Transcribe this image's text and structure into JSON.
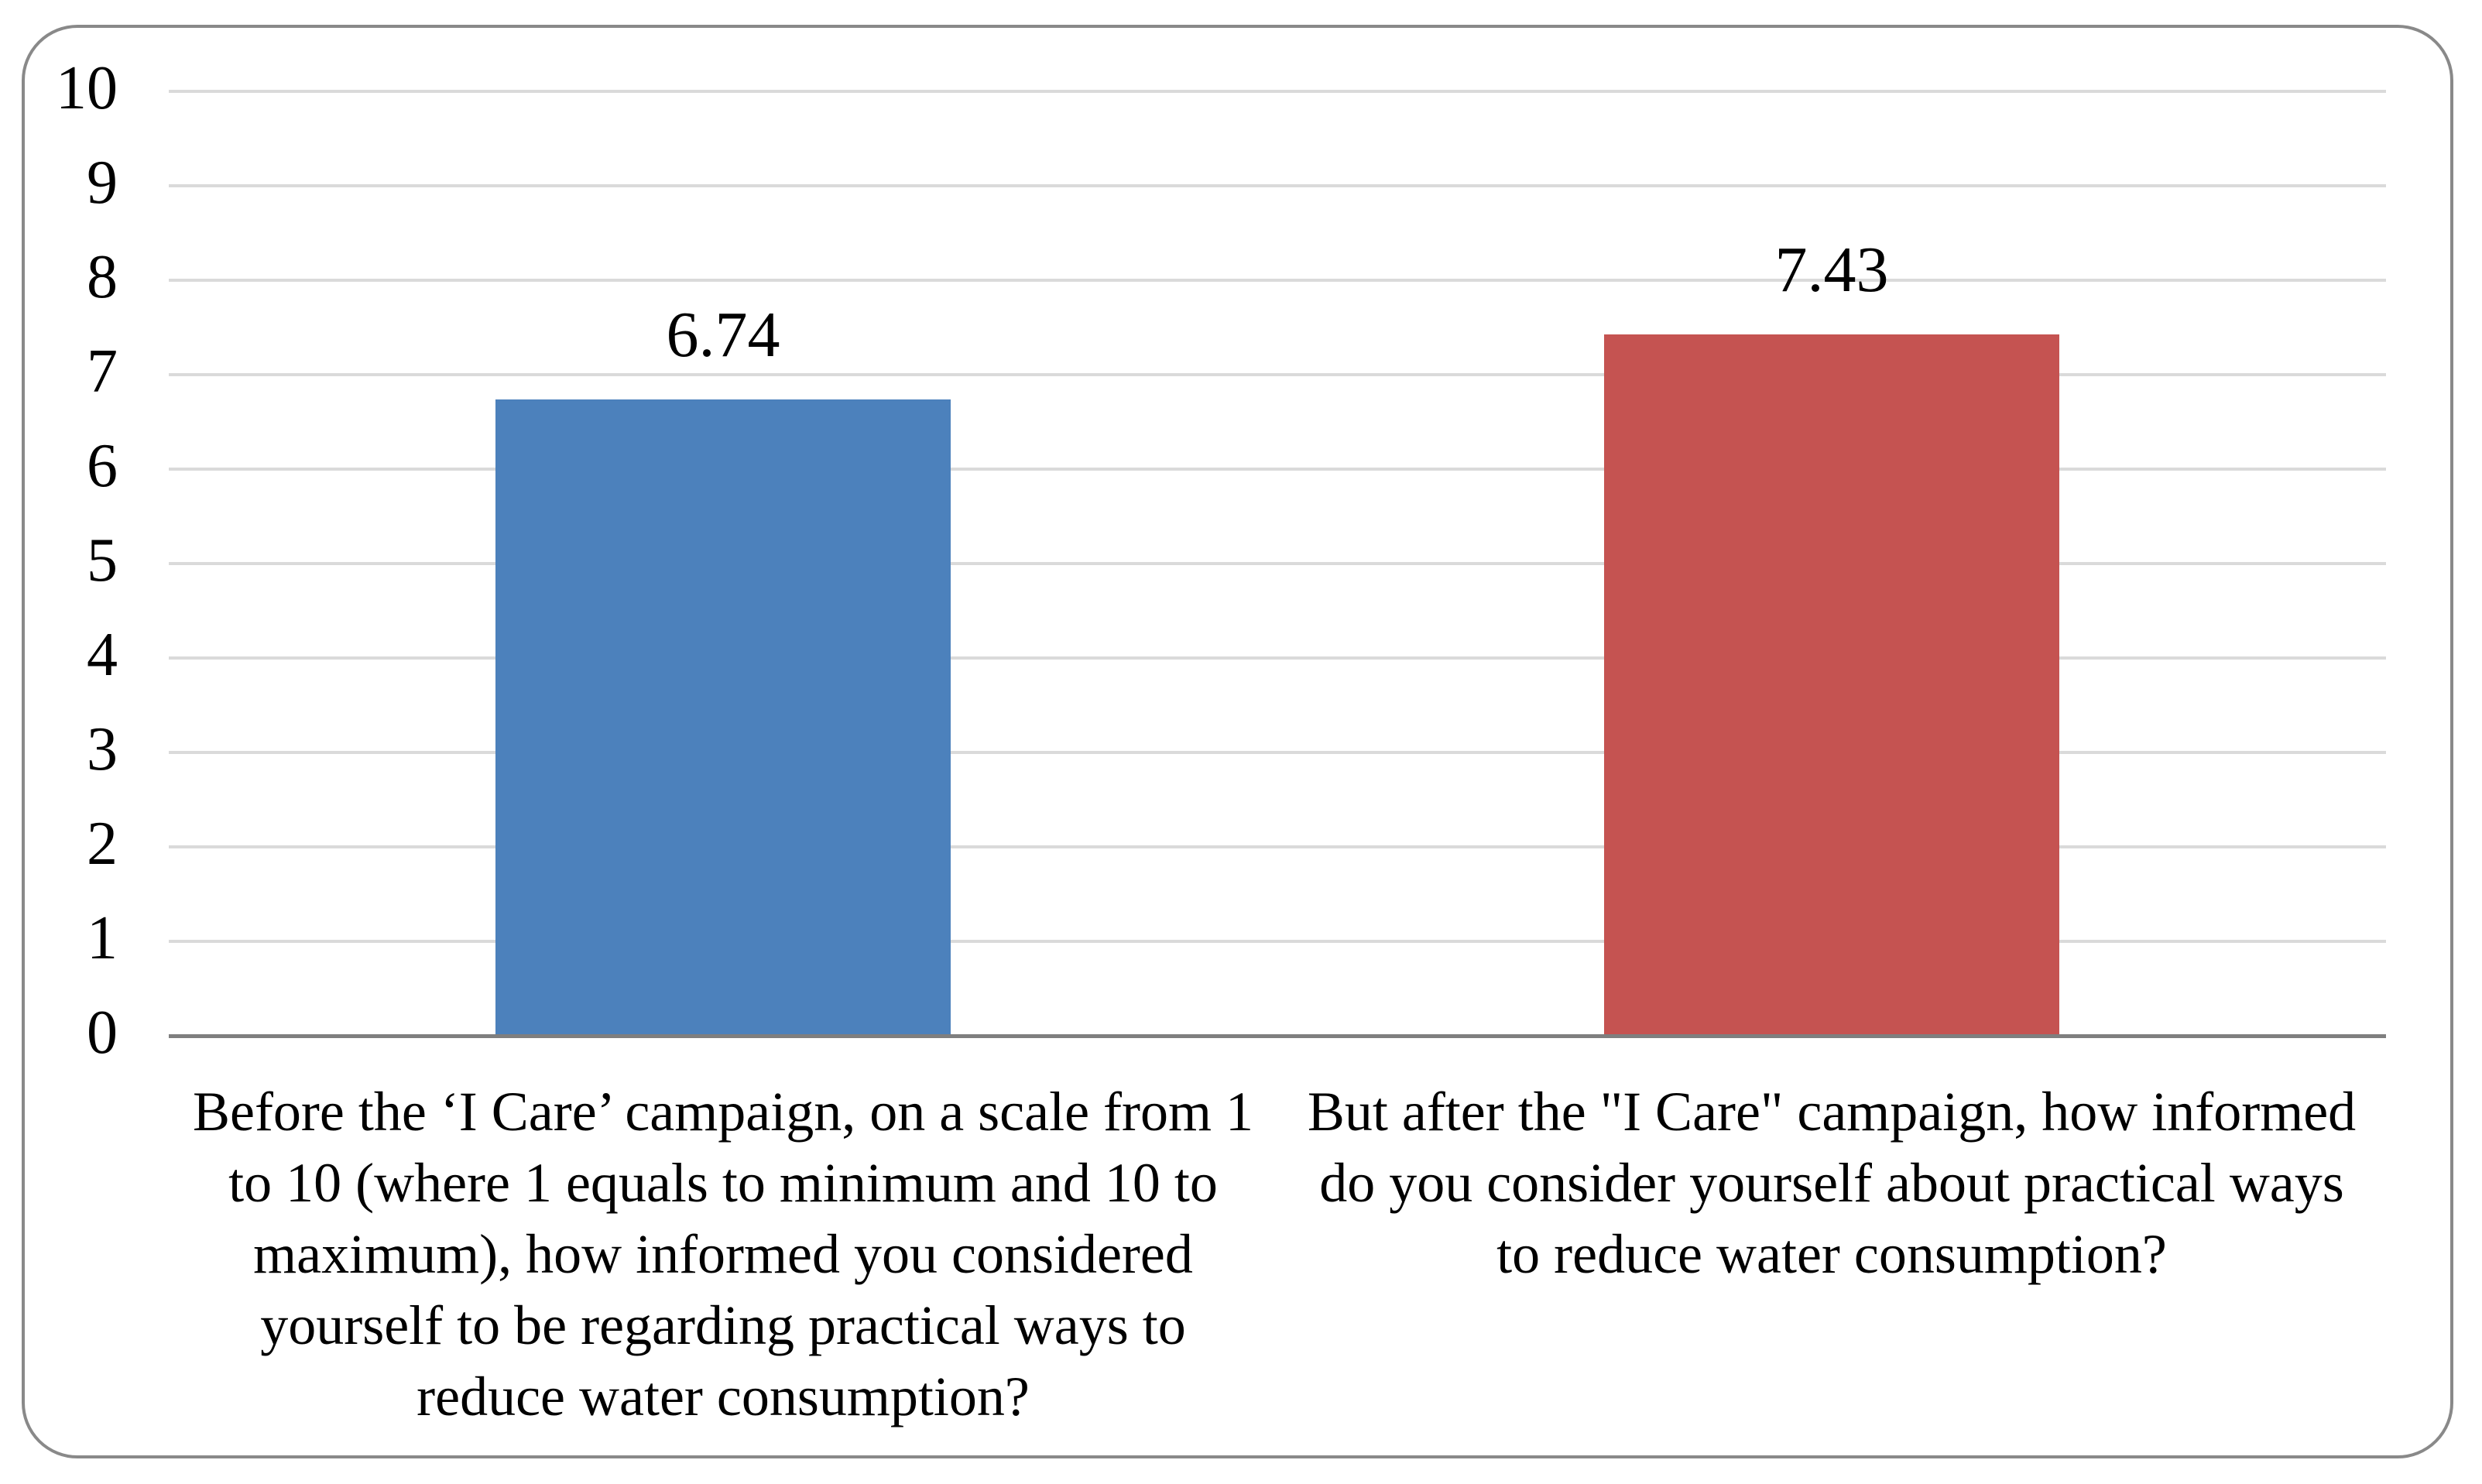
{
  "chart_data": {
    "type": "bar",
    "title": "",
    "xlabel": "",
    "ylabel": "",
    "categories": [
      "Before the ‘I Care’ campaign, on a scale from 1\nto 10 (where 1 equals to minimum and 10 to\nmaximum), how informed you considered\nyourself to be regarding practical ways to\nreduce water consumption?",
      "But after the \"I Care\" campaign, how informed\ndo you consider yourself about practical ways\nto reduce water consumption?"
    ],
    "values": [
      6.74,
      7.43
    ],
    "value_labels": [
      "6.74",
      "7.43"
    ],
    "series_colors": [
      "#4C81BC",
      "#C55351"
    ],
    "ylim": [
      0,
      10
    ],
    "yticks": [
      0,
      1,
      2,
      3,
      4,
      5,
      6,
      7,
      8,
      9,
      10
    ],
    "grid": true,
    "legend_position": "none"
  },
  "frame": {
    "border_color": "#898989",
    "background_color": "#FFFFFF"
  },
  "axis": {
    "baseline_color": "#7F7F7F",
    "gridline_color": "#DADADA",
    "tick_text_color": "#000000"
  }
}
